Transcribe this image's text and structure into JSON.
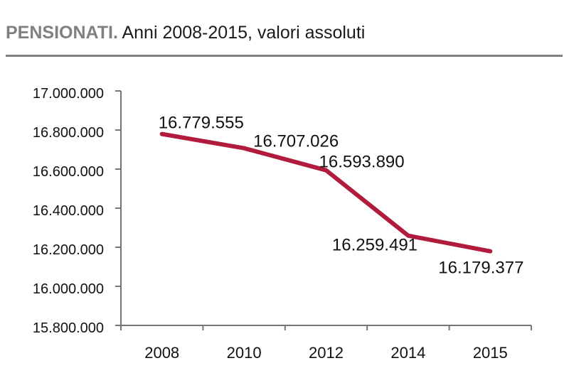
{
  "header": {
    "title_bold": "PENSIONATI.",
    "title_rest": " Anni 2008-2015, valori assoluti"
  },
  "chart_data": {
    "type": "line",
    "title": "PENSIONATI. Anni 2008-2015, valori assoluti",
    "categories": [
      "2008",
      "2010",
      "2012",
      "2014",
      "2015"
    ],
    "values": [
      16779555,
      16707026,
      16593890,
      16259491,
      16179377
    ],
    "point_labels": [
      "16.779.555",
      "16.707.026",
      "16.593.890",
      "16.259.491",
      "16.179.377"
    ],
    "y_ticks": [
      "17.000.000",
      "16.800.000",
      "16.600.000",
      "16.400.000",
      "16.200.000",
      "16.000.000",
      "15.800.000"
    ],
    "ylim": [
      15800000,
      17000000
    ],
    "xlabel": "",
    "ylabel": "",
    "grid": false,
    "legend": "none",
    "line_color": "#B11C3C",
    "axis_color": "#757575",
    "label_color": "#111111",
    "title_accent_color": "#808080"
  }
}
